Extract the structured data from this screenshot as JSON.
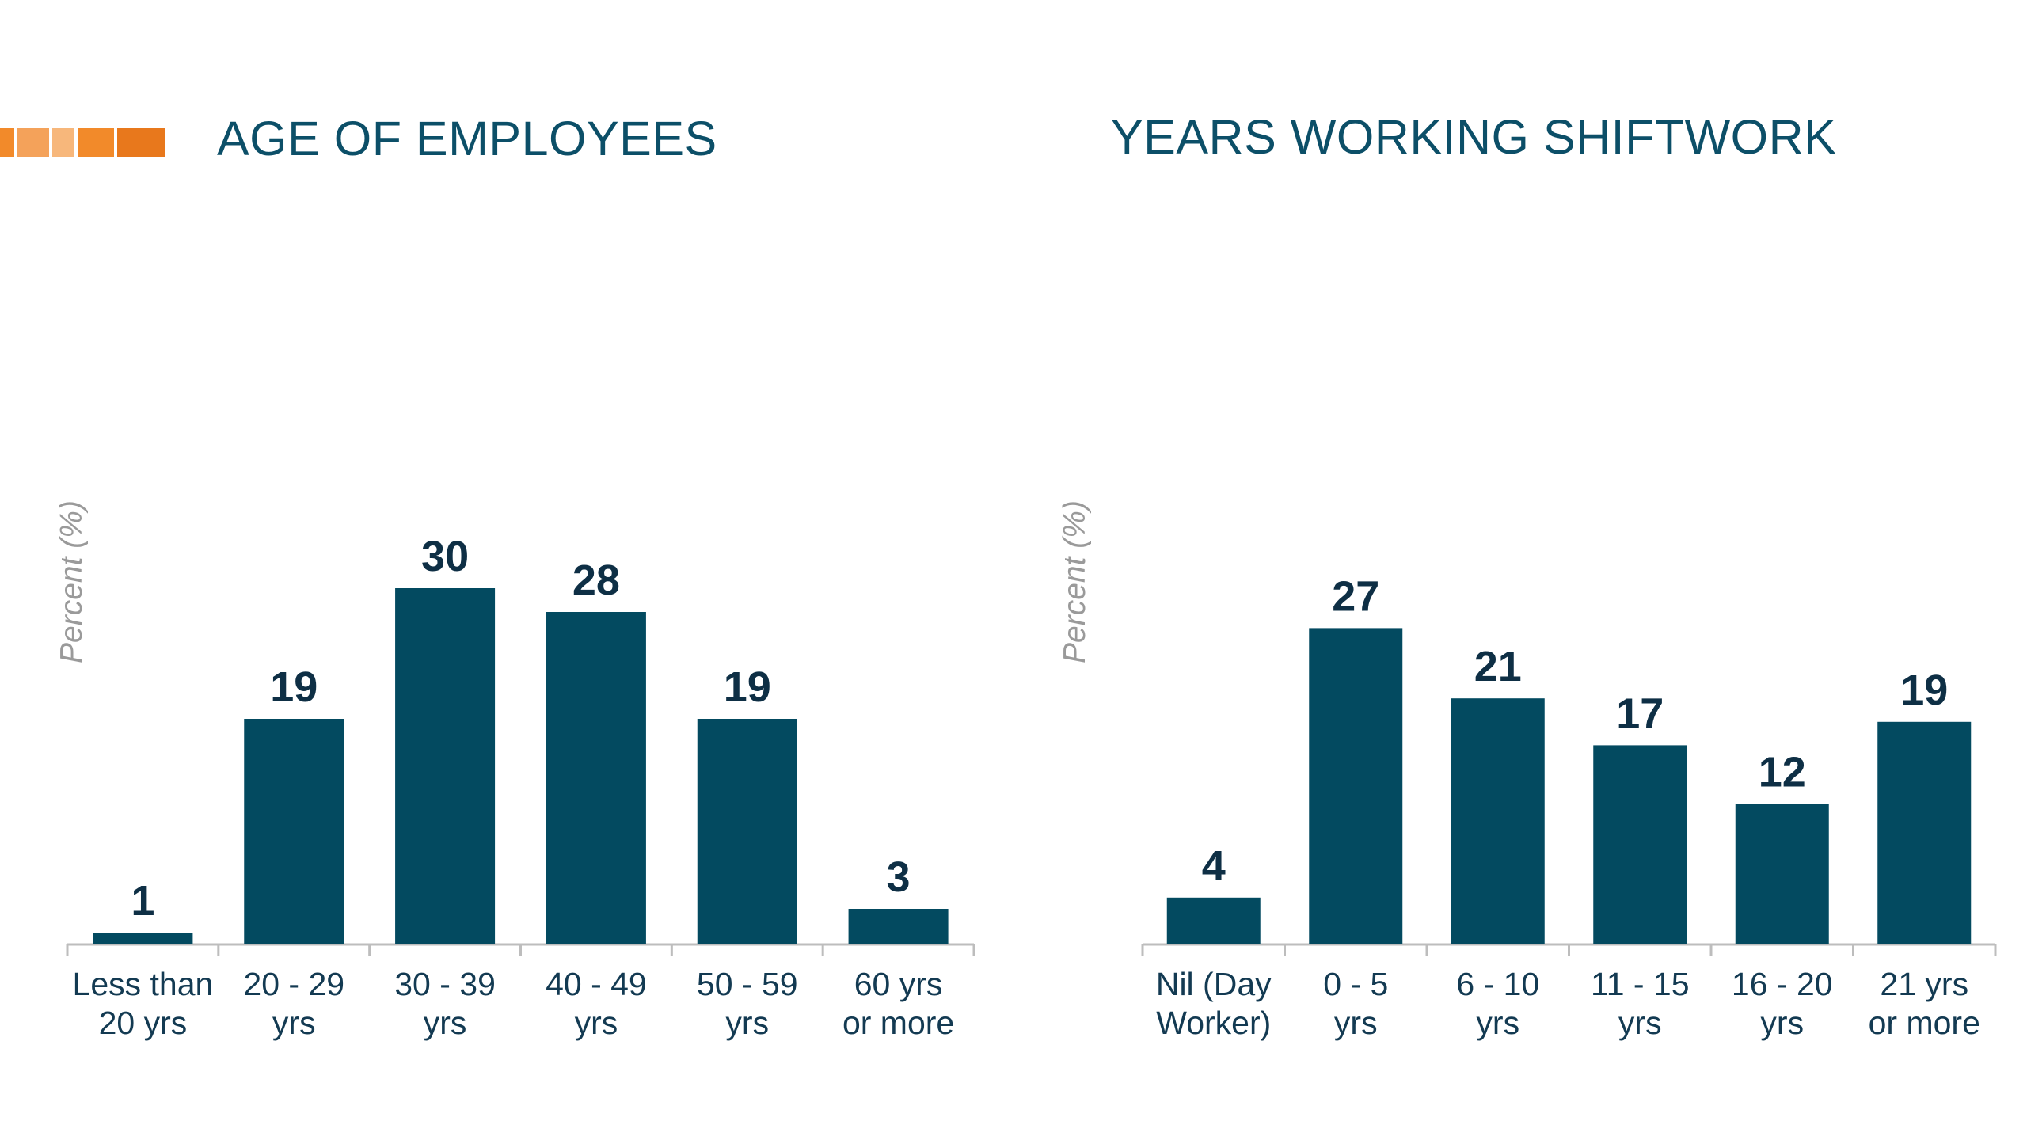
{
  "accent": {
    "colors": [
      "#f4a25a",
      "#f28a2a",
      "#f7b77b",
      "#e8781c"
    ]
  },
  "colors": {
    "bar": "#034a60",
    "title": "#0c4f68",
    "value_label": "#0e2f45",
    "axis": "#bdbdbd",
    "ylabel": "#9a9a9a"
  },
  "chart_data": [
    {
      "type": "bar",
      "title": "AGE OF EMPLOYEES",
      "xlabel": "",
      "ylabel": "Percent (%)",
      "categories": [
        [
          "Less than",
          "20 yrs"
        ],
        [
          "20 - 29",
          "yrs"
        ],
        [
          "30 - 39",
          "yrs"
        ],
        [
          "40 - 49",
          "yrs"
        ],
        [
          "50 - 59",
          "yrs"
        ],
        [
          "60 yrs",
          "or more"
        ]
      ],
      "values": [
        1,
        19,
        30,
        28,
        19,
        3
      ],
      "ylim": [
        0,
        45
      ],
      "grid": false,
      "legend": "none"
    },
    {
      "type": "bar",
      "title": "YEARS WORKING SHIFTWORK",
      "xlabel": "",
      "ylabel": "Percent (%)",
      "categories": [
        [
          "Nil (Day",
          "Worker)"
        ],
        [
          "0 - 5",
          "yrs"
        ],
        [
          "6 - 10",
          "yrs"
        ],
        [
          "11 - 15",
          "yrs"
        ],
        [
          "16 - 20",
          "yrs"
        ],
        [
          "21 yrs",
          "or more"
        ]
      ],
      "values": [
        4,
        27,
        21,
        17,
        12,
        19
      ],
      "ylim": [
        0,
        45
      ],
      "grid": false,
      "legend": "none"
    }
  ]
}
